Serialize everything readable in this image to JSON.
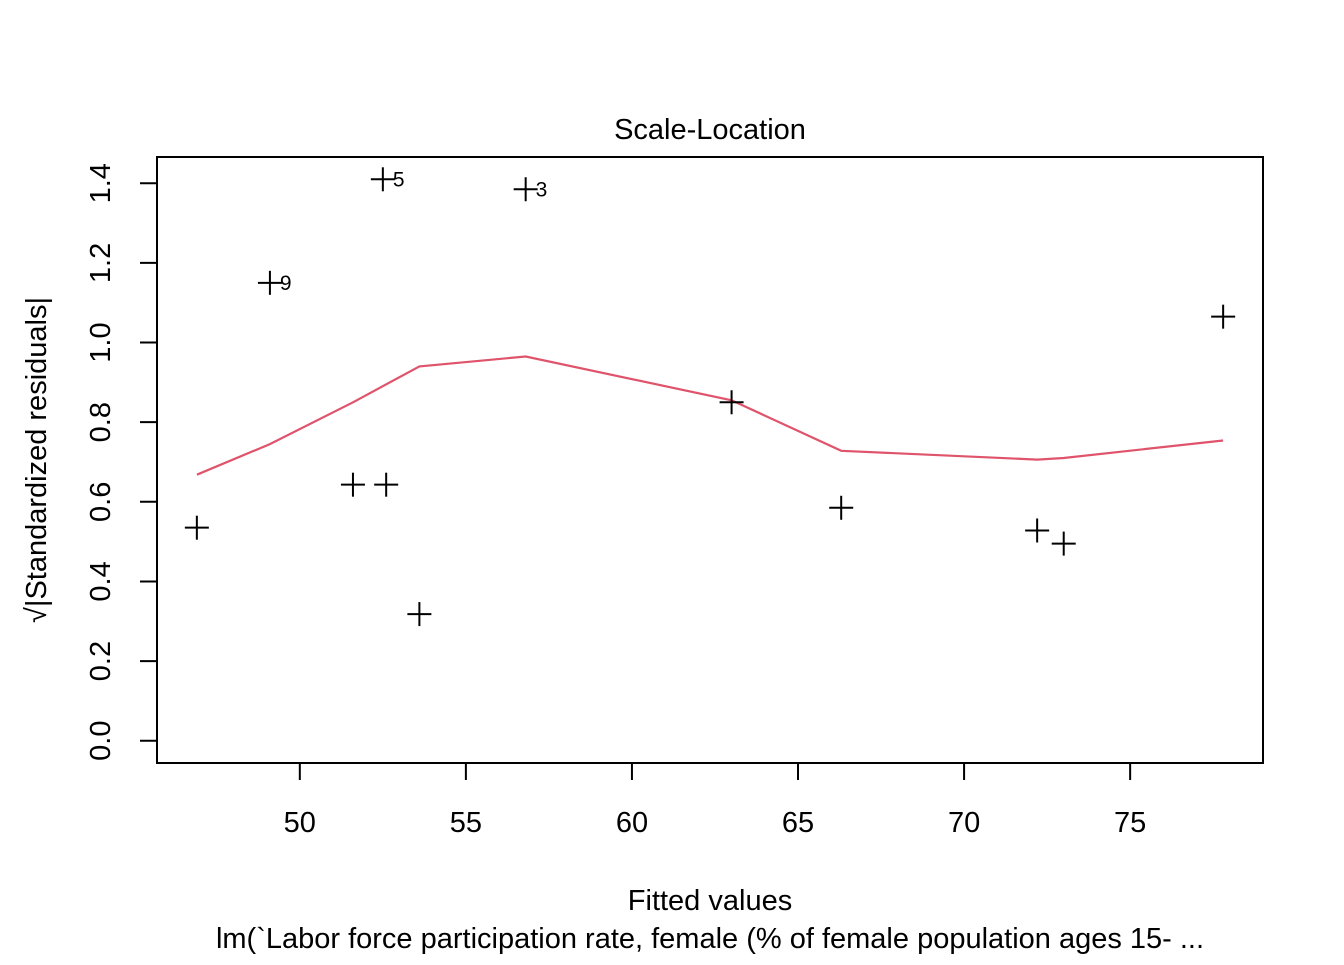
{
  "chart_data": {
    "type": "scatter",
    "title": "Scale-Location",
    "xlabel": "Fitted values",
    "ylabel": "√|Standardized residuals|",
    "subtitle": "lm(`Labor force participation rate, female (% of female population ages 15- ...",
    "xlim": [
      45.7,
      79.0
    ],
    "ylim": [
      -0.056,
      1.466
    ],
    "x_ticks": [
      50,
      55,
      60,
      65,
      70,
      75
    ],
    "y_ticks": [
      0.0,
      0.2,
      0.4,
      0.6,
      0.8,
      1.0,
      1.2,
      1.4
    ],
    "x_tick_labels": [
      "50",
      "55",
      "60",
      "65",
      "70",
      "75"
    ],
    "y_tick_labels": [
      "0.0",
      "0.2",
      "0.4",
      "0.6",
      "0.8",
      "1.0",
      "1.2",
      "1.4"
    ],
    "grid": false,
    "points": [
      {
        "x": 46.9,
        "y": 0.535,
        "label": ""
      },
      {
        "x": 49.1,
        "y": 1.15,
        "label": "9"
      },
      {
        "x": 51.6,
        "y": 0.643,
        "label": ""
      },
      {
        "x": 52.5,
        "y": 1.41,
        "label": "5"
      },
      {
        "x": 52.6,
        "y": 0.643,
        "label": ""
      },
      {
        "x": 53.6,
        "y": 0.318,
        "label": ""
      },
      {
        "x": 56.8,
        "y": 1.385,
        "label": "3"
      },
      {
        "x": 63.0,
        "y": 0.85,
        "label": ""
      },
      {
        "x": 66.3,
        "y": 0.585,
        "label": ""
      },
      {
        "x": 72.2,
        "y": 0.528,
        "label": ""
      },
      {
        "x": 73.0,
        "y": 0.495,
        "label": ""
      },
      {
        "x": 77.8,
        "y": 1.065,
        "label": ""
      }
    ],
    "smooth_line": {
      "color": "#DF536B",
      "x": [
        46.9,
        49.1,
        51.6,
        53.6,
        56.8,
        63.0,
        66.3,
        72.2,
        73.0,
        77.8
      ],
      "y": [
        0.668,
        0.745,
        0.85,
        0.94,
        0.965,
        0.855,
        0.728,
        0.706,
        0.71,
        0.754
      ]
    },
    "colors": {
      "points": "#000000",
      "smooth": "#DF536B",
      "axes": "#000000"
    }
  }
}
